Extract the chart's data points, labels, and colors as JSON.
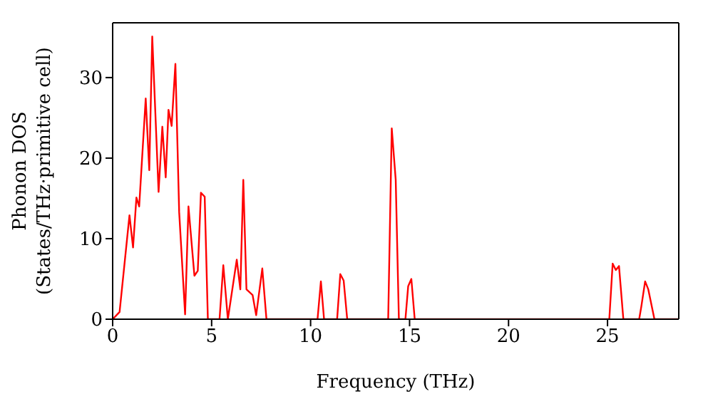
{
  "chart_data": {
    "type": "line",
    "xlabel": "Frequency (THz)",
    "ylabel": "Phonon DOS\n(States/THz·primitive cell)",
    "xlim": [
      0,
      28.6
    ],
    "xticks": [
      0,
      5,
      10,
      15,
      20,
      25
    ],
    "ylim": [
      0,
      36.8
    ],
    "yticks": [
      0,
      10,
      20,
      30
    ],
    "grid": false,
    "marker": "none",
    "line_style": "solid",
    "series": [
      {
        "color": "#ff0000",
        "x": [
          0,
          0.35,
          0.85,
          1.03,
          1.2,
          1.34,
          1.67,
          1.85,
          2.0,
          2.32,
          2.51,
          2.68,
          2.82,
          2.98,
          3.17,
          3.36,
          3.66,
          3.83,
          4.13,
          4.3,
          4.46,
          4.65,
          4.81,
          5.4,
          5.59,
          5.82,
          6.27,
          6.45,
          6.6,
          6.76,
          7.07,
          7.25,
          7.56,
          7.77,
          10.35,
          10.52,
          10.68,
          11.34,
          11.5,
          11.67,
          11.85,
          13.92,
          14.1,
          14.3,
          14.46,
          14.79,
          14.93,
          15.09,
          15.26,
          25.09,
          25.26,
          25.42,
          25.58,
          25.8,
          26.6,
          26.71,
          26.9,
          27.06,
          27.37,
          28.6
        ],
        "values": [
          0,
          0.9,
          12.9,
          8.9,
          15.1,
          14.0,
          27.4,
          18.5,
          35.1,
          15.8,
          23.9,
          17.6,
          26,
          24,
          31.7,
          13.3,
          0.6,
          14.0,
          5.4,
          6,
          15.7,
          15.2,
          0,
          0,
          6.7,
          0,
          7.4,
          3.7,
          17.3,
          3.7,
          3.0,
          0.5,
          6.3,
          0,
          0,
          4.7,
          0,
          0,
          5.6,
          4.8,
          0,
          0,
          23.7,
          17.3,
          0,
          0,
          4.1,
          5.0,
          0,
          0,
          6.9,
          6.1,
          6.6,
          0,
          0,
          1.6,
          4.7,
          3.7,
          0,
          0
        ]
      }
    ]
  }
}
